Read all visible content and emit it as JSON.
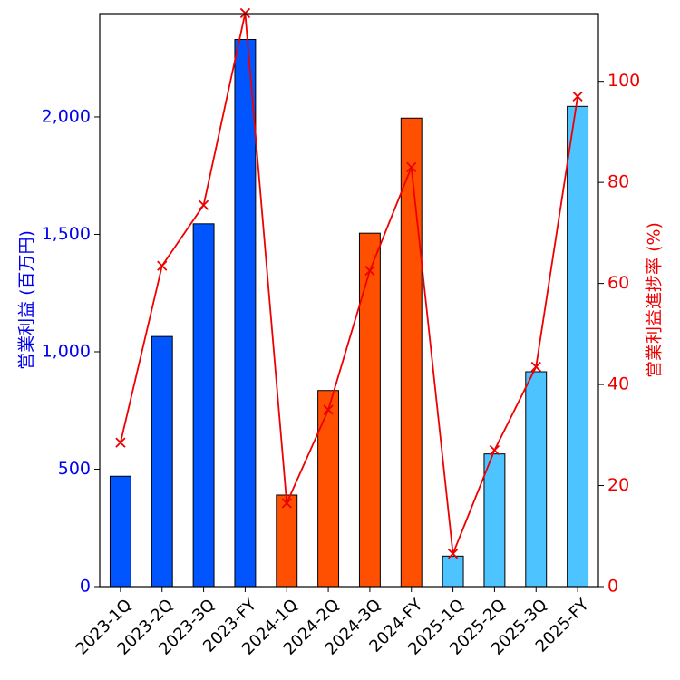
{
  "chart_data": {
    "type": "bar",
    "categories": [
      "2023-1Q",
      "2023-2Q",
      "2023-3Q",
      "2023-FY",
      "2024-1Q",
      "2024-2Q",
      "2024-3Q",
      "2024-FY",
      "2025-1Q",
      "2025-2Q",
      "2025-3Q",
      "2025-FY"
    ],
    "series": [
      {
        "name": "",
        "type": "bar",
        "axis": "left",
        "values": [
          470,
          1065,
          1545,
          2330,
          390,
          835,
          1505,
          1995,
          130,
          565,
          915,
          2045
        ],
        "colors": [
          "#0055ff",
          "#0055ff",
          "#0055ff",
          "#0055ff",
          "#ff4f00",
          "#ff4f00",
          "#ff4f00",
          "#ff4f00",
          "#4dc3ff",
          "#4dc3ff",
          "#4dc3ff",
          "#4dc3ff"
        ]
      },
      {
        "name": "",
        "type": "line",
        "axis": "right",
        "marker": "x",
        "color": "#ee0000",
        "values": [
          28.5,
          63.5,
          75.5,
          113.5,
          16.5,
          35.0,
          62.5,
          83.0,
          6.5,
          27.0,
          43.5,
          97.0
        ]
      }
    ],
    "title": "",
    "xlabel": "",
    "ylabel_left": "営業利益 (百万円)",
    "ylabel_right": "営業利益進捗率 (%)",
    "ylim_left": [
      0,
      2440
    ],
    "ylim_right": [
      0,
      113.4
    ],
    "yticks_left": [
      0,
      500,
      1000,
      1500,
      2000
    ],
    "yticks_left_labels": [
      "0",
      "500",
      "1,000",
      "1,500",
      "2,000"
    ],
    "yticks_right": [
      0,
      20,
      40,
      60,
      80,
      100
    ],
    "yticks_right_labels": [
      "0",
      "20",
      "40",
      "60",
      "80",
      "100"
    ],
    "grid": false,
    "legend": "none",
    "axis_colors": {
      "left": "#0000ee",
      "right": "#ee0000"
    }
  }
}
